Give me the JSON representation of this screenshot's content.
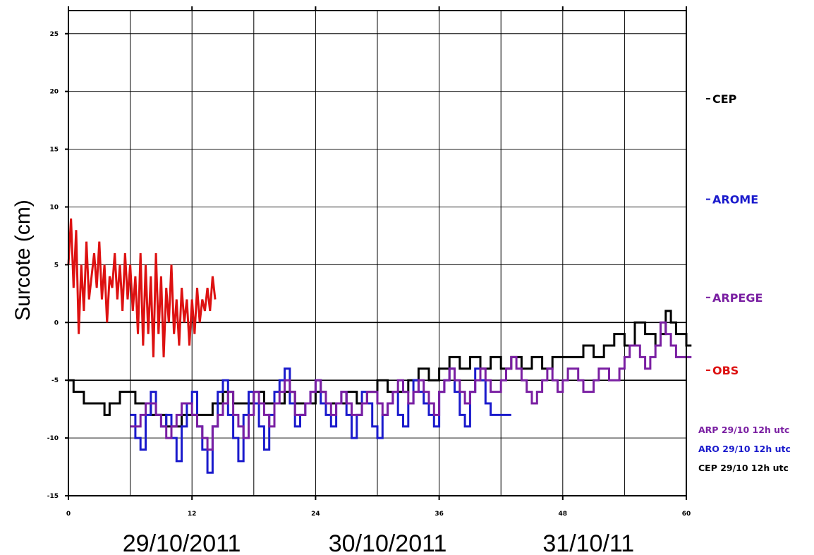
{
  "chart_data": {
    "type": "line",
    "title": "",
    "xlabel": "",
    "ylabel": "Surcote (cm)",
    "xlim": [
      0,
      60
    ],
    "ylim": [
      -15,
      27
    ],
    "x_ticks": [
      0,
      12,
      24,
      36,
      48,
      60
    ],
    "x_tick_labels": [
      "0",
      "12",
      "24",
      "36",
      "48",
      "60"
    ],
    "y_ticks": [
      -15,
      -10,
      -5,
      0,
      5,
      10,
      15,
      20,
      25
    ],
    "y_tick_labels": [
      "-15",
      "-10",
      "-5",
      "0",
      "5",
      "10",
      "15",
      "20",
      "25"
    ],
    "x_gridlines": [
      6,
      12,
      18,
      24,
      30,
      36,
      42,
      48,
      54,
      60
    ],
    "y_gridlines": [
      -15,
      -10,
      -5,
      0,
      5,
      10,
      15,
      20,
      25
    ],
    "grid": true,
    "date_labels": [
      {
        "text": "29/10/2011",
        "x": 11
      },
      {
        "text": "30/10/2011",
        "x": 31
      },
      {
        "text": "31/10/11",
        "x": 50.5
      }
    ],
    "legend": {
      "placement": "right",
      "entries": [
        {
          "name": "CEP",
          "color": "#000000",
          "y": 19
        },
        {
          "name": "AROME",
          "color": "#1a1acc",
          "y": 10.3
        },
        {
          "name": "ARPEGE",
          "color": "#7a1fa2",
          "y": 1.8
        },
        {
          "name": "OBS",
          "color": "#dd1111",
          "y": -4.5
        }
      ]
    },
    "runs": [
      {
        "text": "ARP 29/10 12h utc",
        "color": "#7a1fa2"
      },
      {
        "text": "ARO 29/10 12h utc",
        "color": "#1a1acc"
      },
      {
        "text": "CEP 29/10 12h utc",
        "color": "#000000"
      }
    ],
    "series": [
      {
        "name": "OBS",
        "color": "#dd1111",
        "step": false,
        "x": [
          0,
          0.25,
          0.5,
          0.75,
          1,
          1.25,
          1.5,
          1.75,
          2,
          2.25,
          2.5,
          2.75,
          3,
          3.25,
          3.5,
          3.75,
          4,
          4.25,
          4.5,
          4.75,
          5,
          5.25,
          5.5,
          5.75,
          6,
          6.25,
          6.5,
          6.75,
          7,
          7.25,
          7.5,
          7.75,
          8,
          8.25,
          8.5,
          8.75,
          9,
          9.25,
          9.5,
          9.75,
          10,
          10.25,
          10.5,
          10.75,
          11,
          11.25,
          11.5,
          11.75,
          12,
          12.25,
          12.5,
          12.75,
          13,
          13.25,
          13.5,
          13.75,
          14,
          14.25
        ],
        "y": [
          5,
          9,
          3,
          8,
          -1,
          5,
          1,
          7,
          2,
          4,
          6,
          3,
          7,
          2,
          5,
          0,
          4,
          3,
          6,
          2,
          5,
          1,
          6,
          2,
          5,
          1,
          4,
          -1,
          6,
          -2,
          5,
          -1,
          4,
          -3,
          6,
          -1,
          4,
          -3,
          3,
          0,
          5,
          -1,
          2,
          -2,
          3,
          0,
          2,
          -2,
          2,
          -1,
          3,
          0,
          2,
          1,
          3,
          1,
          4,
          2
        ]
      },
      {
        "name": "CEP 29/10 12h utc",
        "color": "#000000",
        "step": true,
        "x": [
          0,
          0.5,
          1.5,
          2,
          3,
          3.5,
          4,
          4.5,
          5,
          6,
          6.5,
          7,
          8,
          8.5,
          9.5,
          10,
          11,
          11.5,
          12,
          13,
          14,
          15,
          16,
          17,
          18,
          19,
          20,
          21,
          22,
          23,
          24,
          25,
          26,
          27,
          28,
          29,
          30,
          31,
          32,
          33,
          34,
          35,
          36,
          37,
          38,
          39,
          40,
          41,
          42,
          43,
          44,
          45,
          46,
          47,
          48,
          49,
          50,
          51,
          52,
          53,
          54,
          55,
          56,
          57,
          57.5,
          58,
          58.5,
          59,
          60
        ],
        "y": [
          -5,
          -6,
          -7,
          -7,
          -7,
          -8,
          -7,
          -7,
          -6,
          -6,
          -7,
          -7,
          -8,
          -8,
          -9,
          -9,
          -8,
          -8,
          -8,
          -8,
          -7,
          -6,
          -7,
          -7,
          -6,
          -7,
          -7,
          -6,
          -7,
          -7,
          -6,
          -7,
          -7,
          -6,
          -7,
          -6,
          -5,
          -6,
          -6,
          -5,
          -4,
          -5,
          -4,
          -3,
          -4,
          -3,
          -4,
          -3,
          -4,
          -3,
          -4,
          -3,
          -4,
          -3,
          -3,
          -3,
          -2,
          -3,
          -2,
          -1,
          -2,
          0,
          -1,
          -2,
          -1,
          1,
          0,
          -1,
          -2
        ]
      },
      {
        "name": "ARO 29/10 12h utc",
        "color": "#1a1acc",
        "step": true,
        "x": [
          6,
          6.5,
          7,
          7.5,
          8,
          8.5,
          9,
          9.5,
          10,
          10.5,
          11,
          11.5,
          12,
          12.5,
          13,
          13.5,
          14,
          14.5,
          15,
          15.5,
          16,
          16.5,
          17,
          17.5,
          18,
          18.5,
          19,
          19.5,
          20,
          20.5,
          21,
          21.5,
          22,
          22.5,
          23,
          23.5,
          24,
          24.5,
          25,
          25.5,
          26,
          26.5,
          27,
          27.5,
          28,
          28.5,
          29,
          29.5,
          30,
          30.5,
          31,
          31.5,
          32,
          32.5,
          33,
          33.5,
          34,
          34.5,
          35,
          35.5,
          36,
          36.5,
          37,
          37.5,
          38,
          38.5,
          39,
          39.5,
          40,
          40.5,
          41,
          41.5,
          42,
          42.5
        ],
        "y": [
          -8,
          -10,
          -11,
          -8,
          -6,
          -8,
          -9,
          -8,
          -10,
          -12,
          -9,
          -7,
          -6,
          -9,
          -11,
          -13,
          -9,
          -6,
          -5,
          -8,
          -10,
          -12,
          -8,
          -6,
          -7,
          -9,
          -11,
          -8,
          -6,
          -5,
          -4,
          -7,
          -9,
          -8,
          -7,
          -6,
          -5,
          -7,
          -8,
          -9,
          -7,
          -6,
          -8,
          -10,
          -8,
          -6,
          -7,
          -9,
          -10,
          -8,
          -7,
          -6,
          -8,
          -9,
          -7,
          -5,
          -6,
          -7,
          -8,
          -9,
          -6,
          -5,
          -4,
          -6,
          -8,
          -9,
          -6,
          -4,
          -5,
          -7,
          -8,
          -8,
          -8,
          -8
        ]
      },
      {
        "name": "ARP 29/10 12h utc",
        "color": "#7a1fa2",
        "step": true,
        "x": [
          6,
          6.5,
          7,
          7.5,
          8,
          8.5,
          9,
          9.5,
          10,
          10.5,
          11,
          11.5,
          12,
          12.5,
          13,
          13.5,
          14,
          14.5,
          15,
          15.5,
          16,
          16.5,
          17,
          17.5,
          18,
          18.5,
          19,
          19.5,
          20,
          20.5,
          21,
          21.5,
          22,
          22.5,
          23,
          23.5,
          24,
          24.5,
          25,
          25.5,
          26,
          26.5,
          27,
          27.5,
          28,
          28.5,
          29,
          29.5,
          30,
          30.5,
          31,
          31.5,
          32,
          32.5,
          33,
          33.5,
          34,
          34.5,
          35,
          35.5,
          36,
          36.5,
          37,
          37.5,
          38,
          38.5,
          39,
          39.5,
          40,
          40.5,
          41,
          41.5,
          42,
          42.5,
          43,
          43.5,
          44,
          44.5,
          45,
          45.5,
          46,
          46.5,
          47,
          47.5,
          48,
          48.5,
          49,
          49.5,
          50,
          50.5,
          51,
          51.5,
          52,
          52.5,
          53,
          53.5,
          54,
          54.5,
          55,
          55.5,
          56,
          56.5,
          57,
          57.5,
          58,
          58.5,
          59,
          59.5,
          60
        ],
        "y": [
          -9,
          -9,
          -8,
          -7,
          -7,
          -8,
          -9,
          -10,
          -9,
          -8,
          -7,
          -7,
          -8,
          -9,
          -10,
          -11,
          -9,
          -8,
          -7,
          -6,
          -8,
          -9,
          -10,
          -8,
          -6,
          -7,
          -8,
          -9,
          -7,
          -6,
          -5,
          -6,
          -8,
          -8,
          -7,
          -6,
          -5,
          -6,
          -7,
          -8,
          -7,
          -6,
          -7,
          -8,
          -8,
          -7,
          -6,
          -6,
          -7,
          -8,
          -7,
          -6,
          -5,
          -6,
          -7,
          -6,
          -5,
          -6,
          -7,
          -8,
          -6,
          -5,
          -4,
          -5,
          -6,
          -7,
          -6,
          -5,
          -4,
          -5,
          -6,
          -6,
          -5,
          -4,
          -3,
          -4,
          -5,
          -6,
          -7,
          -6,
          -5,
          -4,
          -5,
          -6,
          -5,
          -4,
          -4,
          -5,
          -6,
          -6,
          -5,
          -4,
          -4,
          -5,
          -5,
          -4,
          -3,
          -2,
          -2,
          -3,
          -4,
          -3,
          -2,
          0,
          -1,
          -2,
          -3,
          -3,
          -3
        ]
      }
    ]
  }
}
